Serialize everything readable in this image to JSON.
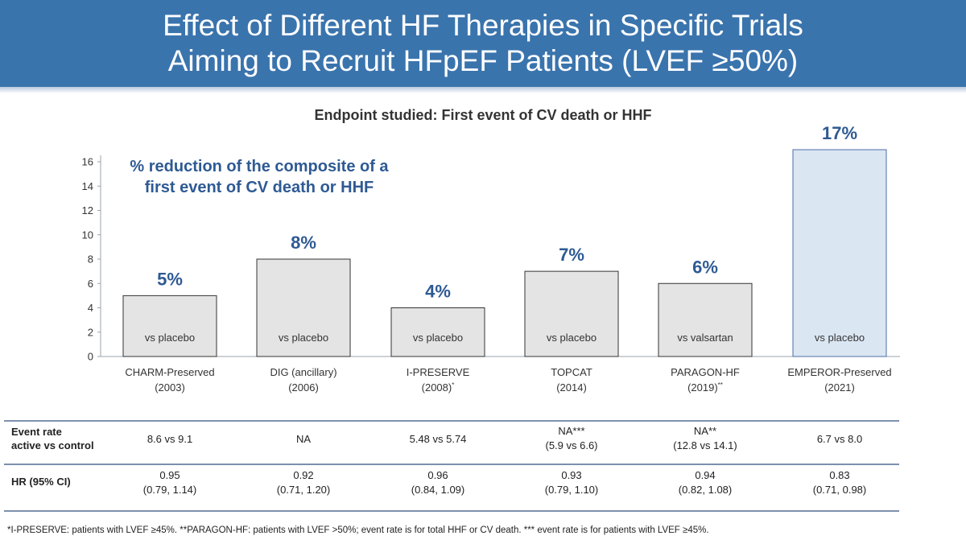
{
  "header": {
    "title_line1": "Effect of Different HF Therapies in Specific Trials",
    "title_line2": "Aiming to Recruit HFpEF Patients (LVEF ≥50%)"
  },
  "subtitle": "Endpoint studied: First event of CV death or HHF",
  "chart_data": {
    "type": "bar",
    "annotation_line1": "% reduction of the composite of a",
    "annotation_line2": "first event of CV death or HHF",
    "ylim": [
      0,
      16
    ],
    "yticks": [
      "0",
      "2",
      "4",
      "6",
      "8",
      "10",
      "12",
      "14",
      "16"
    ],
    "categories": [
      {
        "name": "CHARM-Preserved",
        "year": "(2003)",
        "mark": ""
      },
      {
        "name": "DIG (ancillary)",
        "year": "(2006)",
        "mark": ""
      },
      {
        "name": "I-PRESERVE",
        "year": "(2008)",
        "mark": "*"
      },
      {
        "name": "TOPCAT",
        "year": "(2014)",
        "mark": ""
      },
      {
        "name": "PARAGON-HF",
        "year": "(2019)",
        "mark": "**"
      },
      {
        "name": "EMPEROR-Preserved",
        "year": "(2021)",
        "mark": ""
      }
    ],
    "values": [
      5,
      8,
      4,
      7,
      6,
      17
    ],
    "value_labels": [
      "5%",
      "8%",
      "4%",
      "7%",
      "6%",
      "17%"
    ],
    "comparators": [
      "vs placebo",
      "vs placebo",
      "vs placebo",
      "vs placebo",
      "vs valsartan",
      "vs placebo"
    ],
    "colors": {
      "bar": "#e4e4e4",
      "highlight_bar": "#dbe6f3",
      "highlight_border": "#4a6fa5",
      "label": "#2e5a93",
      "axis": "#9aa3ad"
    },
    "highlight_index": 5
  },
  "table": {
    "rows": [
      {
        "label_line1": "Event rate",
        "label_line2": "active vs control",
        "cells": [
          [
            "8.6 vs 9.1",
            ""
          ],
          [
            "NA",
            ""
          ],
          [
            "5.48 vs 5.74",
            ""
          ],
          [
            "NA***",
            "(5.9 vs 6.6)"
          ],
          [
            "NA**",
            "(12.8 vs 14.1)"
          ],
          [
            "6.7 vs 8.0",
            ""
          ]
        ]
      },
      {
        "label_line1": "HR (95% CI)",
        "label_line2": "",
        "cells": [
          [
            "0.95",
            "(0.79, 1.14)"
          ],
          [
            "0.92",
            "(0.71, 1.20)"
          ],
          [
            "0.96",
            "(0.84, 1.09)"
          ],
          [
            "0.93",
            "(0.79, 1.10)"
          ],
          [
            "0.94",
            "(0.82, 1.08)"
          ],
          [
            "0.83",
            "(0.71, 0.98)"
          ]
        ]
      }
    ]
  },
  "footnote": "*I-PRESERVE: patients with LVEF ≥45%. **PARAGON-HF: patients with LVEF >50%; event rate is for total HHF or CV death. *** event rate is for patients with LVEF ≥45%."
}
